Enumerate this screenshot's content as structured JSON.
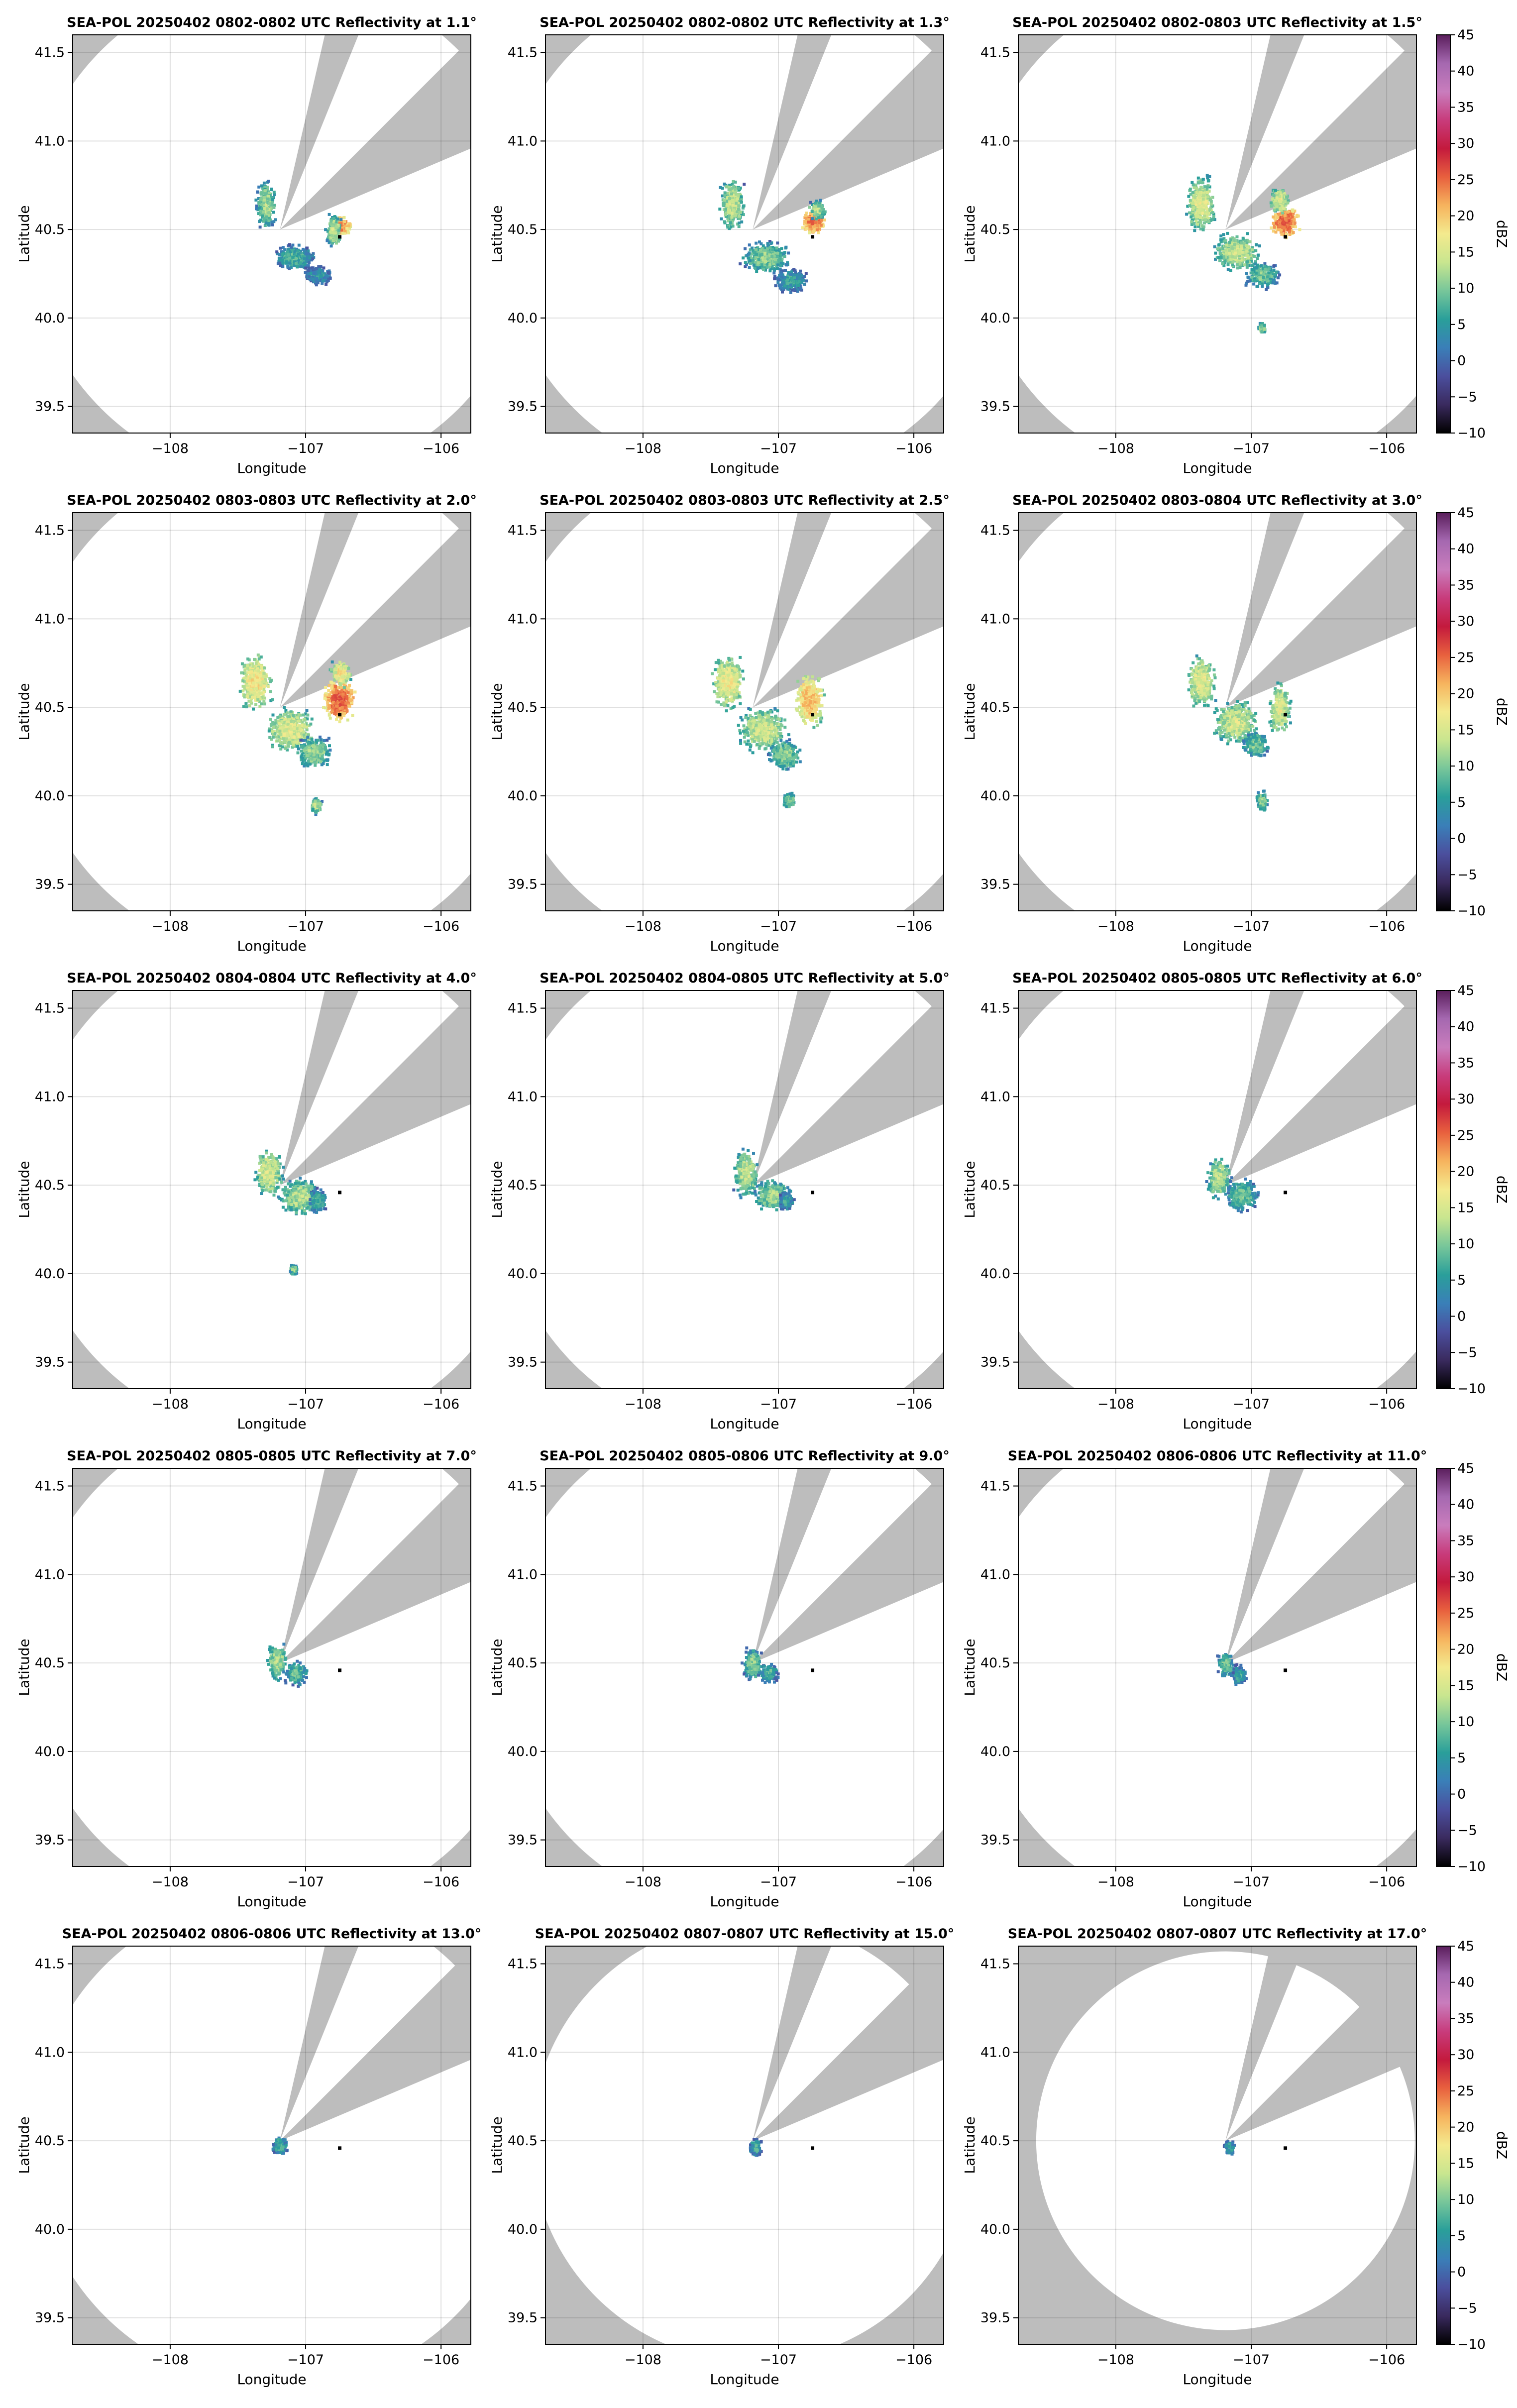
{
  "figure": {
    "xlabel": "Longitude",
    "ylabel": "Latitude",
    "colorbar_label": "dBZ"
  },
  "chart_data": {
    "type": "heatmap",
    "x_ticks": [
      -108,
      -107,
      -106
    ],
    "x_tick_labels": [
      "−108",
      "−107",
      "−106"
    ],
    "y_ticks": [
      39.5,
      40.0,
      40.5,
      41.0,
      41.5
    ],
    "y_tick_labels": [
      "39.5",
      "40.0",
      "40.5",
      "41.0",
      "41.5"
    ],
    "xlim": [
      -108.72,
      -105.78
    ],
    "ylim": [
      39.35,
      41.6
    ],
    "grid": true,
    "colorbar": {
      "min": -10,
      "max": 45,
      "ticks": [
        -10,
        -5,
        0,
        5,
        10,
        15,
        20,
        25,
        30,
        35,
        40,
        45
      ],
      "tick_labels": [
        "−10",
        "−5",
        "0",
        "5",
        "10",
        "15",
        "20",
        "25",
        "30",
        "35",
        "40",
        "45"
      ],
      "colors": [
        "#000000",
        "#3a2a5e",
        "#4b4f9e",
        "#3a7fb8",
        "#2a9f9a",
        "#77c69a",
        "#c9e68f",
        "#f4ea8e",
        "#f6b45e",
        "#e8603e",
        "#c41a3d",
        "#c83c7c",
        "#c97dbd",
        "#a568b0",
        "#5a1e5c"
      ]
    },
    "radar_site": {
      "lon": -107.19,
      "lat": 40.5
    },
    "marker": {
      "lon": -106.75,
      "lat": 40.46
    },
    "beam_blockage": [
      {
        "az_from": 13,
        "az_to": 22
      },
      {
        "az_from": 45,
        "az_to": 67
      }
    ],
    "panels": [
      {
        "title": "SEA-POL 20250402 0802-0802 UTC Reflectivity at 1.1°",
        "range_deg": 1.43,
        "max_dbz": 26,
        "echo": [
          {
            "lon": -107.3,
            "lat": 40.65,
            "dbz": 12,
            "sx": 0.05,
            "sy": 0.09
          },
          {
            "lon": -107.1,
            "lat": 40.35,
            "dbz": 8,
            "sx": 0.11,
            "sy": 0.05
          },
          {
            "lon": -106.92,
            "lat": 40.25,
            "dbz": 5,
            "sx": 0.08,
            "sy": 0.04
          },
          {
            "lon": -106.75,
            "lat": 40.53,
            "dbz": 24,
            "sx": 0.05,
            "sy": 0.04
          },
          {
            "lon": -106.8,
            "lat": 40.5,
            "dbz": 14,
            "sx": 0.04,
            "sy": 0.06
          }
        ]
      },
      {
        "title": "SEA-POL 20250402 0802-0802 UTC Reflectivity at 1.3°",
        "range_deg": 1.43,
        "max_dbz": 26,
        "echo": [
          {
            "lon": -107.35,
            "lat": 40.65,
            "dbz": 14,
            "sx": 0.06,
            "sy": 0.1
          },
          {
            "lon": -107.1,
            "lat": 40.35,
            "dbz": 11,
            "sx": 0.12,
            "sy": 0.06
          },
          {
            "lon": -106.92,
            "lat": 40.22,
            "dbz": 6,
            "sx": 0.09,
            "sy": 0.05
          },
          {
            "lon": -106.75,
            "lat": 40.55,
            "dbz": 25,
            "sx": 0.06,
            "sy": 0.05
          },
          {
            "lon": -106.72,
            "lat": 40.62,
            "dbz": 13,
            "sx": 0.04,
            "sy": 0.04
          }
        ]
      },
      {
        "title": "SEA-POL 20250402 0802-0803 UTC Reflectivity at 1.5°",
        "range_deg": 1.43,
        "max_dbz": 27,
        "echo": [
          {
            "lon": -107.38,
            "lat": 40.65,
            "dbz": 16,
            "sx": 0.07,
            "sy": 0.1
          },
          {
            "lon": -107.12,
            "lat": 40.38,
            "dbz": 14,
            "sx": 0.12,
            "sy": 0.07
          },
          {
            "lon": -106.93,
            "lat": 40.25,
            "dbz": 10,
            "sx": 0.09,
            "sy": 0.05
          },
          {
            "lon": -106.76,
            "lat": 40.55,
            "dbz": 26,
            "sx": 0.07,
            "sy": 0.06
          },
          {
            "lon": -106.8,
            "lat": 40.67,
            "dbz": 16,
            "sx": 0.05,
            "sy": 0.05
          },
          {
            "lon": -106.93,
            "lat": 39.95,
            "dbz": 12,
            "sx": 0.02,
            "sy": 0.02
          }
        ]
      },
      {
        "title": "SEA-POL 20250402 0803-0803 UTC Reflectivity at 2.0°",
        "range_deg": 1.43,
        "max_dbz": 27,
        "echo": [
          {
            "lon": -107.38,
            "lat": 40.65,
            "dbz": 18,
            "sx": 0.08,
            "sy": 0.1
          },
          {
            "lon": -107.12,
            "lat": 40.38,
            "dbz": 16,
            "sx": 0.12,
            "sy": 0.08
          },
          {
            "lon": -106.95,
            "lat": 40.25,
            "dbz": 12,
            "sx": 0.09,
            "sy": 0.06
          },
          {
            "lon": -106.76,
            "lat": 40.55,
            "dbz": 26,
            "sx": 0.08,
            "sy": 0.08
          },
          {
            "lon": -106.75,
            "lat": 40.7,
            "dbz": 18,
            "sx": 0.05,
            "sy": 0.05
          },
          {
            "lon": -106.93,
            "lat": 39.95,
            "dbz": 13,
            "sx": 0.03,
            "sy": 0.03
          }
        ]
      },
      {
        "title": "SEA-POL 20250402 0803-0803 UTC Reflectivity at 2.5°",
        "range_deg": 1.43,
        "max_dbz": 22,
        "echo": [
          {
            "lon": -107.38,
            "lat": 40.65,
            "dbz": 17,
            "sx": 0.08,
            "sy": 0.1
          },
          {
            "lon": -107.12,
            "lat": 40.38,
            "dbz": 15,
            "sx": 0.12,
            "sy": 0.08
          },
          {
            "lon": -106.96,
            "lat": 40.24,
            "dbz": 11,
            "sx": 0.08,
            "sy": 0.06
          },
          {
            "lon": -106.78,
            "lat": 40.55,
            "dbz": 21,
            "sx": 0.07,
            "sy": 0.1
          },
          {
            "lon": -106.93,
            "lat": 39.98,
            "dbz": 12,
            "sx": 0.03,
            "sy": 0.03
          }
        ]
      },
      {
        "title": "SEA-POL 20250402 0803-0804 UTC Reflectivity at 3.0°",
        "range_deg": 1.43,
        "max_dbz": 20,
        "echo": [
          {
            "lon": -107.38,
            "lat": 40.65,
            "dbz": 16,
            "sx": 0.07,
            "sy": 0.1
          },
          {
            "lon": -107.12,
            "lat": 40.42,
            "dbz": 15,
            "sx": 0.11,
            "sy": 0.08
          },
          {
            "lon": -106.98,
            "lat": 40.3,
            "dbz": 10,
            "sx": 0.07,
            "sy": 0.05
          },
          {
            "lon": -106.8,
            "lat": 40.5,
            "dbz": 16,
            "sx": 0.05,
            "sy": 0.1
          },
          {
            "lon": -106.93,
            "lat": 39.98,
            "dbz": 11,
            "sx": 0.03,
            "sy": 0.04
          }
        ]
      },
      {
        "title": "SEA-POL 20250402 0804-0804 UTC Reflectivity at 4.0°",
        "range_deg": 1.43,
        "max_dbz": 17,
        "echo": [
          {
            "lon": -107.28,
            "lat": 40.58,
            "dbz": 15,
            "sx": 0.07,
            "sy": 0.09
          },
          {
            "lon": -107.05,
            "lat": 40.44,
            "dbz": 13,
            "sx": 0.1,
            "sy": 0.07
          },
          {
            "lon": -106.92,
            "lat": 40.42,
            "dbz": 8,
            "sx": 0.05,
            "sy": 0.05
          },
          {
            "lon": -107.1,
            "lat": 40.03,
            "dbz": 11,
            "sx": 0.02,
            "sy": 0.02
          }
        ]
      },
      {
        "title": "SEA-POL 20250402 0804-0805 UTC Reflectivity at 5.0°",
        "range_deg": 1.43,
        "max_dbz": 16,
        "echo": [
          {
            "lon": -107.25,
            "lat": 40.58,
            "dbz": 14,
            "sx": 0.06,
            "sy": 0.09
          },
          {
            "lon": -107.06,
            "lat": 40.45,
            "dbz": 12,
            "sx": 0.09,
            "sy": 0.06
          },
          {
            "lon": -106.95,
            "lat": 40.42,
            "dbz": 7,
            "sx": 0.04,
            "sy": 0.04
          }
        ]
      },
      {
        "title": "SEA-POL 20250402 0805-0805 UTC Reflectivity at 6.0°",
        "range_deg": 1.43,
        "max_dbz": 15,
        "echo": [
          {
            "lon": -107.25,
            "lat": 40.55,
            "dbz": 13,
            "sx": 0.06,
            "sy": 0.08
          },
          {
            "lon": -107.08,
            "lat": 40.45,
            "dbz": 10,
            "sx": 0.08,
            "sy": 0.06
          }
        ]
      },
      {
        "title": "SEA-POL 20250402 0805-0805 UTC Reflectivity at 7.0°",
        "range_deg": 1.43,
        "max_dbz": 15,
        "echo": [
          {
            "lon": -107.22,
            "lat": 40.52,
            "dbz": 13,
            "sx": 0.05,
            "sy": 0.07
          },
          {
            "lon": -107.08,
            "lat": 40.45,
            "dbz": 9,
            "sx": 0.06,
            "sy": 0.05
          }
        ]
      },
      {
        "title": "SEA-POL 20250402 0805-0806 UTC Reflectivity at 9.0°",
        "range_deg": 1.43,
        "max_dbz": 13,
        "echo": [
          {
            "lon": -107.2,
            "lat": 40.5,
            "dbz": 11,
            "sx": 0.05,
            "sy": 0.06
          },
          {
            "lon": -107.08,
            "lat": 40.45,
            "dbz": 8,
            "sx": 0.05,
            "sy": 0.04
          }
        ]
      },
      {
        "title": "SEA-POL 20250402 0806-0806 UTC Reflectivity at 11.0°",
        "range_deg": 1.43,
        "max_dbz": 12,
        "echo": [
          {
            "lon": -107.2,
            "lat": 40.5,
            "dbz": 10,
            "sx": 0.04,
            "sy": 0.05
          },
          {
            "lon": -107.1,
            "lat": 40.44,
            "dbz": 7,
            "sx": 0.04,
            "sy": 0.04
          }
        ]
      },
      {
        "title": "SEA-POL 20250402 0806-0806 UTC Reflectivity at 13.0°",
        "range_deg": 1.4,
        "max_dbz": 10,
        "echo": [
          {
            "lon": -107.2,
            "lat": 40.48,
            "dbz": 8,
            "sx": 0.04,
            "sy": 0.04
          }
        ]
      },
      {
        "title": "SEA-POL 20250402 0807-0807 UTC Reflectivity at 15.0°",
        "range_deg": 1.25,
        "max_dbz": 9,
        "echo": [
          {
            "lon": -107.18,
            "lat": 40.47,
            "dbz": 7,
            "sx": 0.035,
            "sy": 0.035
          }
        ]
      },
      {
        "title": "SEA-POL 20250402 0807-0807 UTC Reflectivity at 17.0°",
        "range_deg": 1.07,
        "max_dbz": 8,
        "echo": [
          {
            "lon": -107.17,
            "lat": 40.47,
            "dbz": 6,
            "sx": 0.03,
            "sy": 0.03
          }
        ]
      }
    ]
  }
}
